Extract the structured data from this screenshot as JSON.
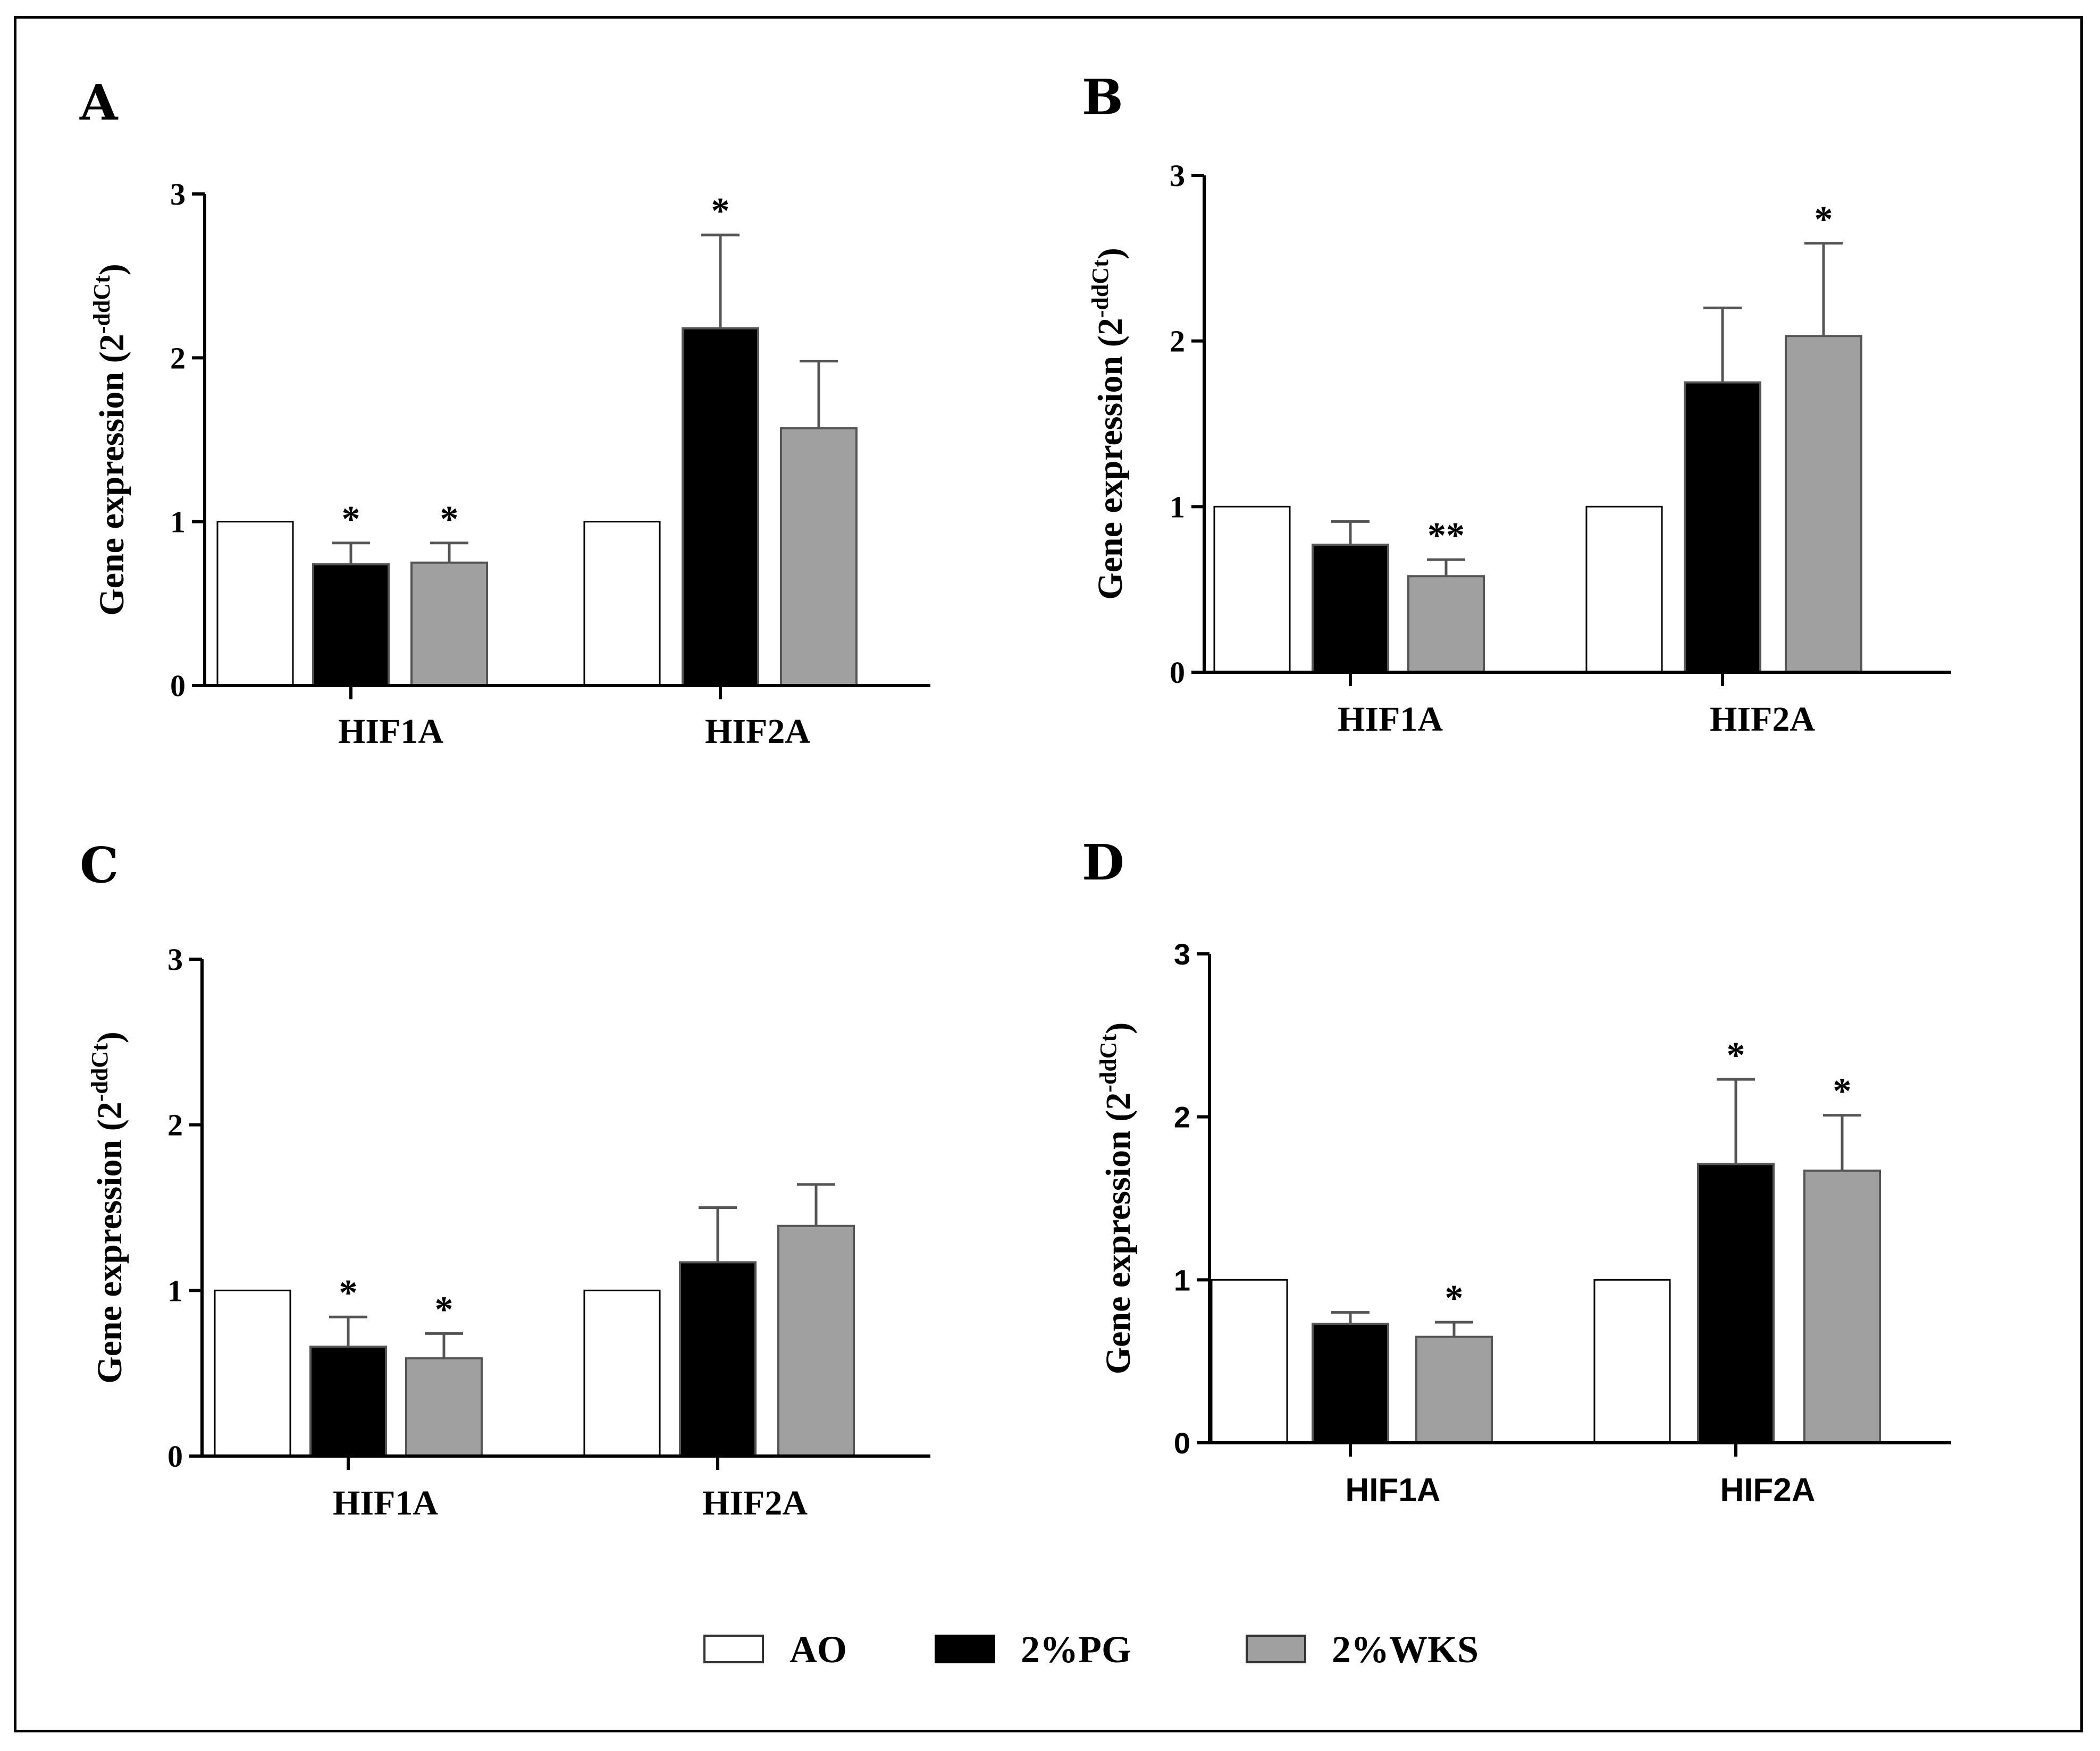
{
  "colors": {
    "AO": "#ffffff",
    "2%PG": "#000000",
    "2%WKS": "#a0a0a0",
    "axis": "#000000"
  },
  "legend": [
    {
      "label": "AO",
      "color": "#ffffff"
    },
    {
      "label": "2%PG",
      "color": "#000000"
    },
    {
      "label": "2%WKS",
      "color": "#a0a0a0"
    }
  ],
  "chart_data": [
    {
      "panel": "A",
      "type": "bar",
      "categories": [
        "HIF1A",
        "HIF2A"
      ],
      "ylabel": "Gene expression (2",
      "ylabel_sup": "-ddCt",
      "ylabel_close": ")",
      "ylim": [
        0,
        3
      ],
      "yticks": [
        "0",
        "1",
        "2",
        "3"
      ],
      "series": [
        {
          "name": "AO",
          "values": [
            1.0,
            1.0
          ],
          "errors": [
            0,
            0
          ],
          "stars": [
            "",
            ""
          ]
        },
        {
          "name": "2%PG",
          "values": [
            0.74,
            2.18
          ],
          "errors": [
            0.13,
            0.57
          ],
          "stars": [
            "*",
            "*"
          ]
        },
        {
          "name": "2%WKS",
          "values": [
            0.75,
            1.57
          ],
          "errors": [
            0.12,
            0.41
          ],
          "stars": [
            "*",
            ""
          ]
        }
      ]
    },
    {
      "panel": "B",
      "type": "bar",
      "categories": [
        "HIF1A",
        "HIF2A"
      ],
      "ylabel": "Gene expression (2",
      "ylabel_sup": "-ddCt",
      "ylabel_close": ")",
      "ylim": [
        0,
        3
      ],
      "yticks": [
        "0",
        "1",
        "2",
        "3"
      ],
      "series": [
        {
          "name": "AO",
          "values": [
            1.0,
            1.0
          ],
          "errors": [
            0,
            0
          ],
          "stars": [
            "",
            ""
          ]
        },
        {
          "name": "2%PG",
          "values": [
            0.77,
            1.75
          ],
          "errors": [
            0.14,
            0.45
          ],
          "stars": [
            "",
            ""
          ]
        },
        {
          "name": "2%WKS",
          "values": [
            0.58,
            2.03
          ],
          "errors": [
            0.1,
            0.56
          ],
          "stars": [
            "**",
            "*"
          ]
        }
      ]
    },
    {
      "panel": "C",
      "type": "bar",
      "categories": [
        "HIF1A",
        "HIF2A"
      ],
      "ylabel": "Gene expression (2",
      "ylabel_sup": "-ddCt",
      "ylabel_close": ")",
      "ylim": [
        0,
        3
      ],
      "yticks": [
        "0",
        "1",
        "2",
        "3"
      ],
      "series": [
        {
          "name": "AO",
          "values": [
            1.0,
            1.0
          ],
          "errors": [
            0,
            0
          ],
          "stars": [
            "",
            ""
          ]
        },
        {
          "name": "2%PG",
          "values": [
            0.66,
            1.17
          ],
          "errors": [
            0.18,
            0.33
          ],
          "stars": [
            "*",
            ""
          ]
        },
        {
          "name": "2%WKS",
          "values": [
            0.59,
            1.39
          ],
          "errors": [
            0.15,
            0.25
          ],
          "stars": [
            "*",
            ""
          ]
        }
      ]
    },
    {
      "panel": "D",
      "type": "bar",
      "categories": [
        "HIF1A",
        "HIF2A"
      ],
      "ylabel": "Gene expression (2",
      "ylabel_sup": "-ddCt",
      "ylabel_close": ")",
      "ylim": [
        0,
        3
      ],
      "yticks": [
        "0",
        "1",
        "2",
        "3"
      ],
      "series": [
        {
          "name": "AO",
          "values": [
            1.0,
            1.0
          ],
          "errors": [
            0,
            0
          ],
          "stars": [
            "",
            ""
          ]
        },
        {
          "name": "2%PG",
          "values": [
            0.73,
            1.71
          ],
          "errors": [
            0.07,
            0.52
          ],
          "stars": [
            "",
            "*"
          ]
        },
        {
          "name": "2%WKS",
          "values": [
            0.65,
            1.67
          ],
          "errors": [
            0.09,
            0.34
          ],
          "stars": [
            "*",
            "*"
          ]
        }
      ]
    }
  ]
}
